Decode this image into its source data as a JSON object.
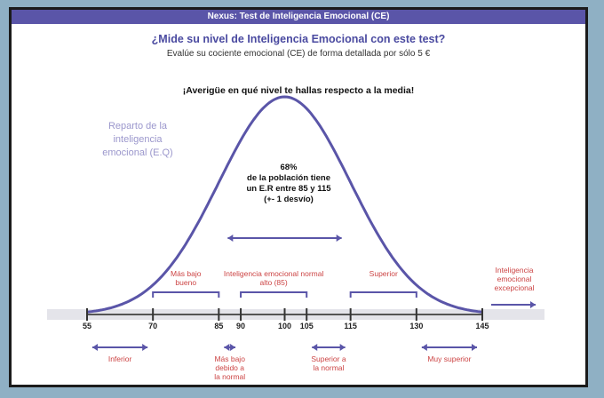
{
  "window": {
    "title": "Nexus: Test de Inteligencia Emocional (CE)"
  },
  "header": {
    "headline": "¿Mide su nivel de Inteligencia Emocional con este test?",
    "subheadline": "Evalúe su cociente emocional (CE) de forma detallada por sólo 5 €"
  },
  "question": "¡Averigüe en qué nivel te hallas respecto a la media!",
  "axis_title": [
    "Reparto de la",
    "inteligencia",
    "emocional (E.Q)"
  ],
  "center_note": [
    "68%",
    "de la población tiene",
    "un E.R entre 85 y 115",
    "(+- 1 desvío)"
  ],
  "colors": {
    "curve": "#5a55a8",
    "label_red": "#c44",
    "title_bar": "#5a55a8",
    "arrow": "#5a55a8"
  },
  "chart_data": {
    "type": "area",
    "x_ticks": [
      "55",
      "70",
      "85",
      "90",
      "100",
      "105",
      "115",
      "130",
      "145"
    ],
    "distribution": "normal",
    "mean": 100,
    "sd": 15,
    "bands_upper": [
      {
        "label": "Más bajo bueno",
        "from": "70",
        "to": "85"
      },
      {
        "label": "Inteligencia emocional normal alto (85)",
        "from": "90",
        "to": "105"
      },
      {
        "label": "Superior",
        "from": "115",
        "to": "130"
      },
      {
        "label": "Inteligencia emocional excepcional",
        "from": "145",
        "to": "145"
      }
    ],
    "bands_lower": [
      {
        "label": "Inferior",
        "from": "55",
        "to": "70"
      },
      {
        "label": "Más bajo debido a la normal",
        "from": "85",
        "to": "90"
      },
      {
        "label": "Superior a la normal",
        "from": "105",
        "to": "115"
      },
      {
        "label": "Muy superior",
        "from": "130",
        "to": "145"
      }
    ]
  }
}
